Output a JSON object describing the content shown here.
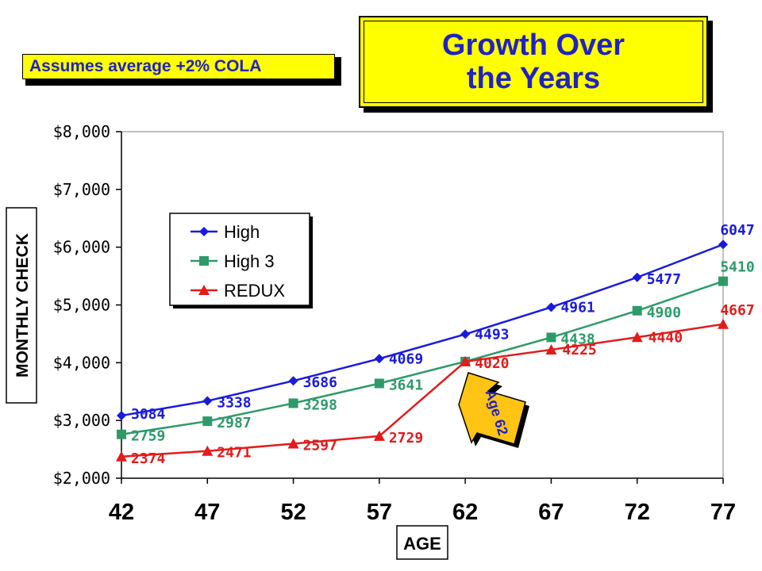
{
  "title": {
    "line1": "Growth Over",
    "line2": "the Years"
  },
  "note": "Assumes average +2% COLA",
  "colors": {
    "high": "#1a1adc",
    "high3": "#2e9a6a",
    "redux": "#e31b1b",
    "title_text": "#1f22c4",
    "highlight": "#ffff00",
    "callout": "#ffc414"
  },
  "callout": {
    "text": "Age 62"
  },
  "chart_data": {
    "type": "line",
    "xlabel": "AGE",
    "ylabel": "MONTHLY CHECK",
    "x": [
      42,
      47,
      52,
      57,
      62,
      67,
      72,
      77
    ],
    "ylim": [
      2000,
      8000
    ],
    "yticks": [
      "$2,000",
      "$3,000",
      "$4,000",
      "$5,000",
      "$6,000",
      "$7,000",
      "$8,000"
    ],
    "ytick_values": [
      2000,
      3000,
      4000,
      5000,
      6000,
      7000,
      8000
    ],
    "legend_position": "upper-left",
    "series": [
      {
        "name": "High",
        "marker": "diamond",
        "values": [
          3084,
          3338,
          3686,
          4069,
          4493,
          4961,
          5477,
          6047
        ]
      },
      {
        "name": "High 3",
        "marker": "square",
        "values": [
          2759,
          2987,
          3298,
          3641,
          4020,
          4438,
          4900,
          5410
        ]
      },
      {
        "name": "REDUX",
        "marker": "triangle",
        "values": [
          2374,
          2471,
          2597,
          2729,
          4020,
          4225,
          4440,
          4667
        ]
      }
    ]
  }
}
